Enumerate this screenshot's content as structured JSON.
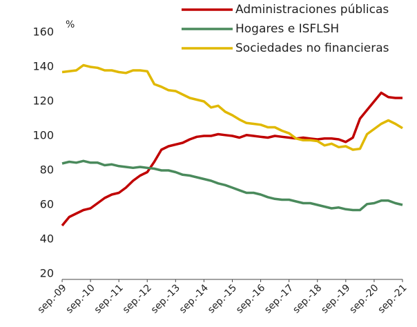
{
  "chart_data": {
    "type": "line",
    "y_unit": "%",
    "categories": [
      "sep.-09",
      null,
      null,
      null,
      "sep.-10",
      null,
      null,
      null,
      "sep.-11",
      null,
      null,
      null,
      "sep.-12",
      null,
      null,
      null,
      "sep.-13",
      null,
      null,
      null,
      "sep.-14",
      null,
      null,
      null,
      "sep.-15",
      null,
      null,
      null,
      "sep.-16",
      null,
      null,
      null,
      "sep.-17",
      null,
      null,
      null,
      "sep.-18",
      null,
      null,
      null,
      "sep.-19",
      null,
      null,
      null,
      "sep.-20",
      null,
      null,
      null,
      "sep.-21"
    ],
    "series": [
      {
        "name": "Administraciones públicas",
        "color": "#c00000",
        "values": [
          48,
          53,
          55,
          57,
          58,
          61,
          64,
          66,
          67,
          70,
          74,
          77,
          79,
          85,
          92,
          94,
          95,
          96,
          98,
          99.5,
          100,
          100,
          101,
          100.5,
          100,
          99,
          100.5,
          100,
          99.5,
          99,
          100,
          99.5,
          99,
          98.5,
          99,
          98.5,
          98,
          98.5,
          98.5,
          98,
          96.5,
          99,
          110,
          115,
          120,
          125,
          122.5,
          122,
          122
        ]
      },
      {
        "name": "Hogares e ISFLSH",
        "color": "#4a8a5c",
        "values": [
          84,
          85,
          84.5,
          85.5,
          84.5,
          84.5,
          83,
          83.5,
          82.5,
          82,
          81.5,
          82,
          81.5,
          81,
          80,
          80,
          79,
          77.5,
          77,
          76,
          75,
          74,
          72.5,
          71.5,
          70,
          68.5,
          67,
          67,
          66,
          64.5,
          63.5,
          63,
          63,
          62,
          61,
          61,
          60,
          59,
          58,
          58.5,
          57.5,
          57,
          57,
          60.5,
          61,
          62.5,
          62.5,
          61,
          60
        ]
      },
      {
        "name": "Sociedades no financieras",
        "color": "#e0b800",
        "values": [
          137,
          137.5,
          138,
          141,
          140,
          139.5,
          138,
          138,
          137,
          136.5,
          138,
          138,
          137.5,
          130,
          128.5,
          126.5,
          126,
          124,
          122,
          121,
          120,
          116.5,
          117.5,
          114,
          112,
          109.5,
          107.5,
          107,
          106.5,
          105,
          105,
          103,
          101.5,
          98.5,
          97.5,
          97.5,
          97,
          94.5,
          95.5,
          93.5,
          94,
          92,
          92.5,
          101,
          104,
          107,
          109,
          107,
          104.5
        ]
      }
    ],
    "ylim": [
      20,
      160
    ],
    "yticks": [
      20,
      40,
      60,
      80,
      100,
      120,
      140,
      160
    ],
    "grid": false,
    "legend": "top-right"
  }
}
